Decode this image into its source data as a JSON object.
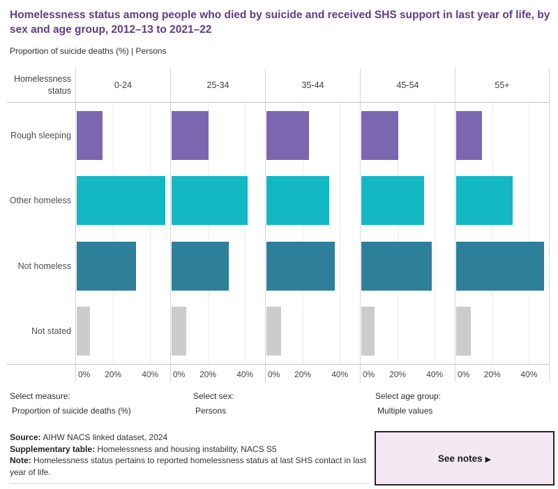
{
  "chart_data": {
    "type": "bar",
    "orientation": "horizontal",
    "title": "Homelessness status among people who died by suicide and received SHS support in last year of life, by sex and age group, 2012–13 to 2021–22",
    "subtitle": "Proportion of suicide deaths (%) | Persons",
    "row_header": "Homelessness status",
    "categories": [
      "Rough sleeping",
      "Other homeless",
      "Not homeless",
      "Not stated"
    ],
    "facets": [
      "0-24",
      "25-34",
      "35-44",
      "45-54",
      "55+"
    ],
    "series": [
      {
        "name": "0-24",
        "values": [
          14,
          48,
          32,
          7
        ]
      },
      {
        "name": "25-34",
        "values": [
          20,
          41,
          31,
          8
        ]
      },
      {
        "name": "35-44",
        "values": [
          23,
          34,
          37,
          8
        ]
      },
      {
        "name": "45-54",
        "values": [
          20,
          34,
          38,
          7
        ]
      },
      {
        "name": "55+",
        "values": [
          14,
          31,
          48,
          8
        ]
      }
    ],
    "unit": "%",
    "ylabel": "Proportion of suicide deaths (%)",
    "xlim": [
      0,
      51
    ],
    "xtick_values": [
      0,
      20,
      40
    ],
    "xticks": [
      "0%",
      "20%",
      "40%"
    ],
    "grid": true,
    "legend": "none",
    "bar_colors": [
      "#7a67b0",
      "#14b8c5",
      "#2e7f99",
      "#cccccc"
    ]
  },
  "controls": [
    {
      "label": "Select measure:",
      "value": "Proportion of suicide deaths (%)"
    },
    {
      "label": "Select sex:",
      "value": "Persons"
    },
    {
      "label": "Select age group:",
      "value": "Multiple values"
    }
  ],
  "notes": {
    "lines": [
      {
        "label": "Source:",
        "text": " AIHW NACS linked dataset, 2024"
      },
      {
        "label": "Supplementary table:",
        "text": " Homelessness and housing instability, NACS S5"
      },
      {
        "label": "Note:",
        "text": " Homelessness status pertains to reported homelessness status at last SHS contact in last year of life."
      }
    ]
  },
  "see_notes": {
    "label": "See notes",
    "arrow": "▶"
  },
  "theme": {
    "title_color": "#5f3d82",
    "button_bg": "#f3e8f1",
    "button_border": "#262626",
    "pane_border": "#d6d6d6",
    "gridline": "#e9e9e9",
    "axis_line": "#c6c6c6"
  }
}
